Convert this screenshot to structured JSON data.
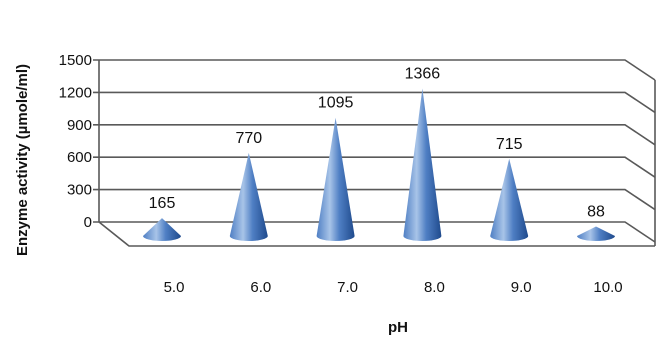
{
  "chart_data": {
    "type": "bar",
    "mark": "cone",
    "three_d": true,
    "categories": [
      "5.0",
      "6.0",
      "7.0",
      "8.0",
      "9.0",
      "10.0"
    ],
    "values": [
      165,
      770,
      1095,
      1366,
      715,
      88
    ],
    "data_labels": [
      "165",
      "770",
      "1095",
      "1366",
      "715",
      "88"
    ],
    "title": "",
    "xlabel": "pH",
    "ylabel": "Enzyme activity (µmole/ml)",
    "y_ticks": [
      "0",
      "300",
      "600",
      "900",
      "1200",
      "1500"
    ],
    "y_tick_values": [
      0,
      300,
      600,
      900,
      1200,
      1500
    ],
    "ylim": [
      0,
      1500
    ],
    "grid": true,
    "legend": "none",
    "colors": {
      "cone_light": "#a8c4e8",
      "cone_mid": "#4f7fc4",
      "cone_dark": "#1f4a8c",
      "grid": "#595959"
    }
  }
}
